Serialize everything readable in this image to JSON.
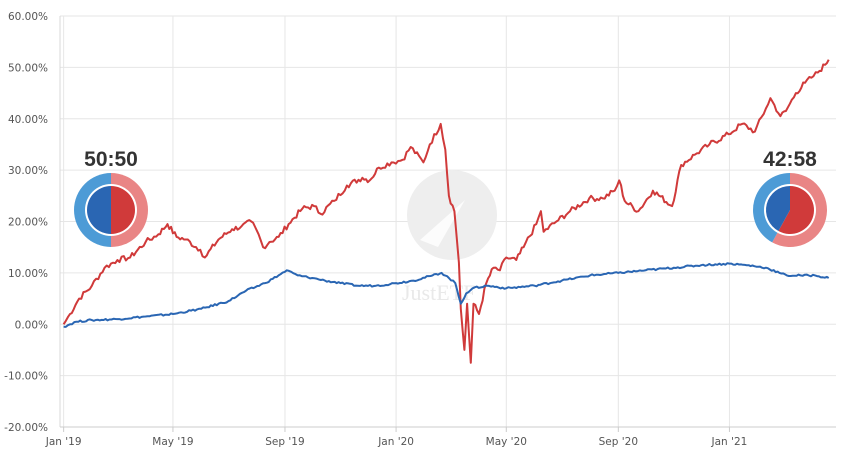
{
  "chart_data": {
    "type": "line",
    "title": "",
    "xlabel": "",
    "ylabel": "",
    "x_start": "2019-01-01",
    "x_end": "2021-04-20",
    "xlim": [
      "2018-12-28",
      "2021-04-28"
    ],
    "ylim": [
      -20,
      60
    ],
    "y_ticks": [
      -20,
      -10,
      0,
      10,
      20,
      30,
      40,
      50,
      60
    ],
    "y_tick_labels": [
      "-20.00%",
      "-10.00%",
      "0.00%",
      "10.00%",
      "20.00%",
      "30.00%",
      "40.00%",
      "50.00%",
      "60.00%"
    ],
    "x_ticks": [
      "2019-01-01",
      "2019-05-01",
      "2019-09-01",
      "2020-01-01",
      "2020-05-01",
      "2020-09-01",
      "2021-01-01"
    ],
    "x_tick_labels": [
      "Jan '19",
      "May '19",
      "Sep '19",
      "Jan '20",
      "May '20",
      "Sep '20",
      "Jan '21"
    ],
    "grid": true,
    "watermark": "JustETF",
    "series": [
      {
        "color": "#d03a3a",
        "points": [
          [
            "2019-01-01",
            0
          ],
          [
            "2019-01-08",
            2
          ],
          [
            "2019-01-18",
            5
          ],
          [
            "2019-02-01",
            7.5
          ],
          [
            "2019-02-15",
            11
          ],
          [
            "2019-03-01",
            12.5
          ],
          [
            "2019-03-15",
            13
          ],
          [
            "2019-04-01",
            16
          ],
          [
            "2019-04-15",
            17.5
          ],
          [
            "2019-04-25",
            19.5
          ],
          [
            "2019-05-05",
            17
          ],
          [
            "2019-05-15",
            16.5
          ],
          [
            "2019-05-31",
            14.5
          ],
          [
            "2019-06-05",
            13
          ],
          [
            "2019-06-20",
            16.5
          ],
          [
            "2019-07-05",
            18.5
          ],
          [
            "2019-07-15",
            19
          ],
          [
            "2019-07-26",
            20
          ],
          [
            "2019-08-03",
            17.5
          ],
          [
            "2019-08-08",
            15
          ],
          [
            "2019-08-15",
            16
          ],
          [
            "2019-08-25",
            17
          ],
          [
            "2019-09-05",
            19.5
          ],
          [
            "2019-09-20",
            22.5
          ],
          [
            "2019-10-03",
            23
          ],
          [
            "2019-10-10",
            21.5
          ],
          [
            "2019-10-25",
            24
          ],
          [
            "2019-11-08",
            27
          ],
          [
            "2019-11-25",
            28.5
          ],
          [
            "2019-12-03",
            28
          ],
          [
            "2019-12-13",
            30.5
          ],
          [
            "2019-12-27",
            31.5
          ],
          [
            "2020-01-08",
            32
          ],
          [
            "2020-01-17",
            34.5
          ],
          [
            "2020-01-31",
            31.5
          ],
          [
            "2020-02-07",
            35
          ],
          [
            "2020-02-19",
            39
          ],
          [
            "2020-02-24",
            34
          ],
          [
            "2020-02-28",
            25
          ],
          [
            "2020-03-05",
            22
          ],
          [
            "2020-03-10",
            12
          ],
          [
            "2020-03-12",
            3
          ],
          [
            "2020-03-16",
            -5
          ],
          [
            "2020-03-19",
            4
          ],
          [
            "2020-03-23",
            -7.5
          ],
          [
            "2020-03-26",
            4
          ],
          [
            "2020-04-01",
            2
          ],
          [
            "2020-04-09",
            8
          ],
          [
            "2020-04-17",
            11
          ],
          [
            "2020-04-24",
            10.5
          ],
          [
            "2020-05-01",
            13
          ],
          [
            "2020-05-12",
            12.5
          ],
          [
            "2020-05-20",
            15
          ],
          [
            "2020-06-03",
            19.5
          ],
          [
            "2020-06-08",
            22
          ],
          [
            "2020-06-11",
            18
          ],
          [
            "2020-06-25",
            20
          ],
          [
            "2020-07-10",
            22
          ],
          [
            "2020-07-31",
            24.5
          ],
          [
            "2020-08-15",
            24.5
          ],
          [
            "2020-08-28",
            26
          ],
          [
            "2020-09-02",
            28
          ],
          [
            "2020-09-08",
            24
          ],
          [
            "2020-09-23",
            22
          ],
          [
            "2020-10-09",
            26
          ],
          [
            "2020-10-30",
            23
          ],
          [
            "2020-11-09",
            31
          ],
          [
            "2020-11-24",
            33
          ],
          [
            "2020-12-10",
            35
          ],
          [
            "2020-12-31",
            37
          ],
          [
            "2021-01-15",
            39
          ],
          [
            "2021-01-29",
            37.5
          ],
          [
            "2021-02-10",
            42
          ],
          [
            "2021-02-15",
            44
          ],
          [
            "2021-02-26",
            40.5
          ],
          [
            "2021-03-04",
            41.5
          ],
          [
            "2021-03-15",
            45
          ],
          [
            "2021-03-25",
            47
          ],
          [
            "2021-04-01",
            48
          ],
          [
            "2021-04-08",
            49
          ],
          [
            "2021-04-16",
            50.5
          ],
          [
            "2021-04-20",
            51.5
          ]
        ]
      },
      {
        "color": "#2a66b3",
        "points": [
          [
            "2019-01-01",
            -0.5
          ],
          [
            "2019-01-15",
            0.5
          ],
          [
            "2019-02-01",
            0.8
          ],
          [
            "2019-03-01",
            1
          ],
          [
            "2019-04-01",
            1.5
          ],
          [
            "2019-05-01",
            2
          ],
          [
            "2019-06-01",
            3
          ],
          [
            "2019-07-01",
            4.5
          ],
          [
            "2019-07-20",
            6.5
          ],
          [
            "2019-08-10",
            8
          ],
          [
            "2019-08-25",
            9.5
          ],
          [
            "2019-09-03",
            10.5
          ],
          [
            "2019-09-15",
            9.5
          ],
          [
            "2019-10-01",
            9
          ],
          [
            "2019-10-15",
            8.5
          ],
          [
            "2019-11-01",
            8
          ],
          [
            "2019-11-20",
            7.5
          ],
          [
            "2019-12-10",
            7.5
          ],
          [
            "2020-01-01",
            8
          ],
          [
            "2020-01-20",
            8.5
          ],
          [
            "2020-02-10",
            9.5
          ],
          [
            "2020-02-20",
            10
          ],
          [
            "2020-02-28",
            9
          ],
          [
            "2020-03-06",
            8
          ],
          [
            "2020-03-12",
            4
          ],
          [
            "2020-03-18",
            6
          ],
          [
            "2020-03-25",
            7
          ],
          [
            "2020-04-10",
            7.5
          ],
          [
            "2020-05-01",
            7
          ],
          [
            "2020-06-01",
            7.5
          ],
          [
            "2020-07-01",
            8.5
          ],
          [
            "2020-08-01",
            9.5
          ],
          [
            "2020-09-01",
            10
          ],
          [
            "2020-10-01",
            10.5
          ],
          [
            "2020-11-01",
            11
          ],
          [
            "2020-12-01",
            11.5
          ],
          [
            "2021-01-01",
            11.8
          ],
          [
            "2021-01-20",
            11.5
          ],
          [
            "2021-02-10",
            11
          ],
          [
            "2021-02-25",
            10
          ],
          [
            "2021-03-05",
            9.5
          ],
          [
            "2021-03-20",
            9.5
          ],
          [
            "2021-04-05",
            9.5
          ],
          [
            "2021-04-20",
            9
          ]
        ]
      }
    ]
  },
  "allocation_badges": [
    {
      "label": "50:50",
      "blue_share": 50,
      "red_share": 50,
      "position": "left"
    },
    {
      "label": "42:58",
      "blue_share": 42,
      "red_share": 58,
      "position": "right"
    }
  ]
}
